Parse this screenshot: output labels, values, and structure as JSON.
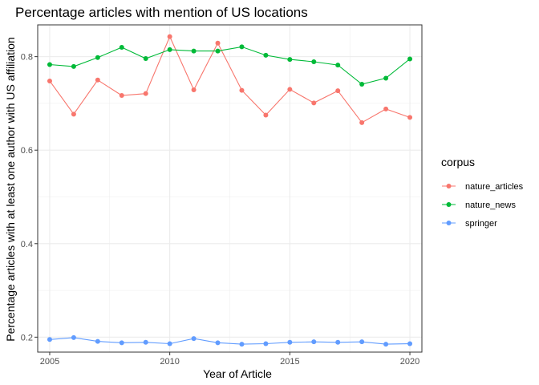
{
  "chart_data": {
    "type": "line",
    "title": "Percentage articles with mention of US locations",
    "xlabel": "Year of Article",
    "ylabel": "Percentage articles with at least one author with US affiliation",
    "xlim": [
      2004.5,
      2020.5
    ],
    "ylim": [
      0.168,
      0.868
    ],
    "x_ticks": [
      2005,
      2010,
      2015,
      2020
    ],
    "y_ticks": [
      0.2,
      0.4,
      0.6,
      0.8
    ],
    "y_tick_labels": [
      "0.2",
      "0.4",
      "0.6",
      "0.8"
    ],
    "grid": true,
    "legend_position": "right",
    "legend_title": "corpus",
    "x": [
      2005,
      2006,
      2007,
      2008,
      2009,
      2010,
      2011,
      2012,
      2013,
      2014,
      2015,
      2016,
      2017,
      2018,
      2019,
      2020
    ],
    "series": [
      {
        "name": "nature_articles",
        "color": "#F8766D",
        "values": [
          0.748,
          0.677,
          0.75,
          0.717,
          0.721,
          0.843,
          0.729,
          0.829,
          0.728,
          0.675,
          0.73,
          0.701,
          0.727,
          0.659,
          0.688,
          0.67
        ]
      },
      {
        "name": "nature_news",
        "color": "#00BA38",
        "values": [
          0.783,
          0.779,
          0.798,
          0.82,
          0.796,
          0.815,
          0.812,
          0.812,
          0.821,
          0.803,
          0.794,
          0.789,
          0.782,
          0.741,
          0.754,
          0.795
        ]
      },
      {
        "name": "springer",
        "color": "#619CFF",
        "values": [
          0.195,
          0.199,
          0.191,
          0.188,
          0.189,
          0.186,
          0.197,
          0.188,
          0.185,
          0.186,
          0.189,
          0.19,
          0.189,
          0.19,
          0.185,
          0.186
        ]
      }
    ]
  }
}
